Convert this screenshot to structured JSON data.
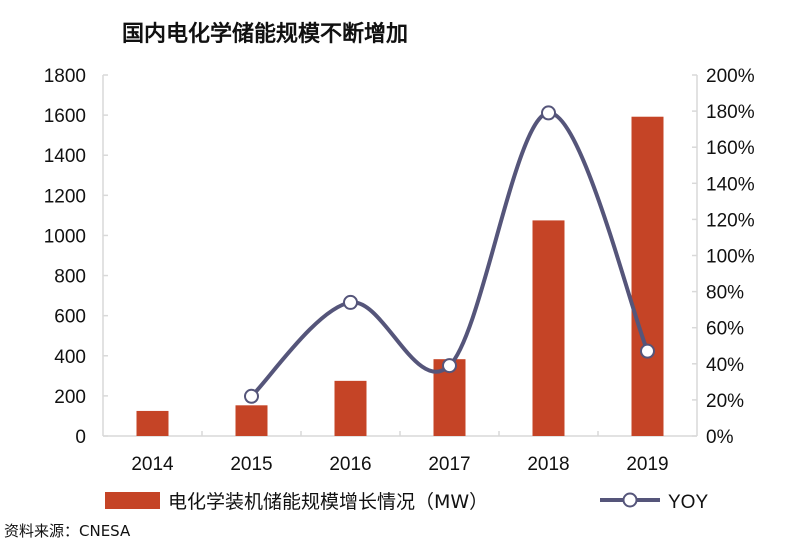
{
  "title": "国内电化学储能规模不断增加",
  "source": "资料来源：CNESA",
  "colors": {
    "bar": "#c54426",
    "line": "#55557a",
    "axis": "#d9d9d9"
  },
  "chart_data": {
    "type": "bar+line",
    "categories": [
      "2014",
      "2015",
      "2016",
      "2017",
      "2018",
      "2019"
    ],
    "series": [
      {
        "name": "电化学装机储能规模增长情况（MW）",
        "type": "bar",
        "axis": "left",
        "values": [
          125,
          153,
          275,
          383,
          1075,
          1592
        ]
      },
      {
        "name": "YOY",
        "type": "line",
        "axis": "right",
        "values": [
          null,
          22,
          74,
          39,
          179,
          47
        ]
      }
    ],
    "left_axis": {
      "range": [
        0,
        1800
      ],
      "ticks": [
        "0",
        "200",
        "400",
        "600",
        "800",
        "1000",
        "1200",
        "1400",
        "1600",
        "1800"
      ]
    },
    "right_axis": {
      "range": [
        0,
        200
      ],
      "ticks": [
        "0%",
        "20%",
        "40%",
        "60%",
        "80%",
        "100%",
        "120%",
        "140%",
        "160%",
        "180%",
        "200%"
      ]
    },
    "grid": false,
    "legend_placement": "bottom"
  }
}
